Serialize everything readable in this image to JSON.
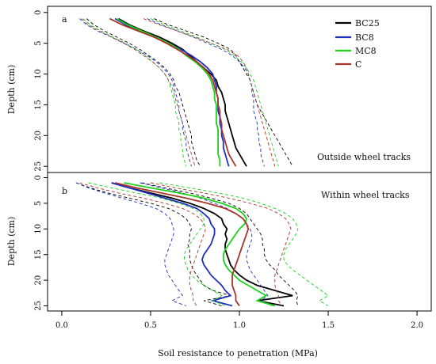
{
  "chart_data": {
    "type": "line",
    "xlabel": "Soil resistance to penetration (MPa)",
    "x_ticks": [
      "0.0",
      "0.5",
      "1.0",
      "1.5",
      "2.0"
    ],
    "x_tick_values": [
      0,
      0.5,
      1.0,
      1.5,
      2.0
    ],
    "xlim": [
      -0.08,
      2.08
    ],
    "legend": {
      "placement": "top-right",
      "entries": [
        {
          "label": "BC25",
          "color": "#000000"
        },
        {
          "label": "BC8",
          "color": "#1f2fbf"
        },
        {
          "label": "MC8",
          "color": "#19d219"
        },
        {
          "label": "C",
          "color": "#a8342a"
        }
      ]
    },
    "panels": [
      {
        "id": "a",
        "letter": "a",
        "annotation": "Outside wheel tracks",
        "ylabel": "Depth (cm)",
        "y_ticks": [
          "0",
          "5",
          "10",
          "15",
          "20",
          "25"
        ],
        "y_tick_values": [
          0,
          5,
          10,
          15,
          20,
          25
        ],
        "ylim": [
          26,
          -1
        ],
        "depths": [
          1,
          2,
          3,
          4,
          5,
          6,
          7,
          8,
          9,
          10,
          11,
          12,
          13,
          14,
          15,
          16,
          17,
          18,
          19,
          20,
          21,
          22,
          23,
          24,
          25
        ],
        "series": [
          {
            "name": "BC25",
            "color": "#000000",
            "mean": [
              0.32,
              0.38,
              0.46,
              0.55,
              0.62,
              0.68,
              0.72,
              0.76,
              0.8,
              0.84,
              0.87,
              0.88,
              0.9,
              0.91,
              0.92,
              0.92,
              0.93,
              0.94,
              0.95,
              0.96,
              0.97,
              0.98,
              1.0,
              1.02,
              1.04
            ],
            "lower": [
              0.14,
              0.18,
              0.24,
              0.31,
              0.38,
              0.44,
              0.49,
              0.54,
              0.58,
              0.61,
              0.63,
              0.64,
              0.66,
              0.67,
              0.68,
              0.69,
              0.7,
              0.71,
              0.72,
              0.73,
              0.73,
              0.74,
              0.75,
              0.76,
              0.78
            ],
            "upper": [
              0.52,
              0.6,
              0.7,
              0.8,
              0.88,
              0.95,
              0.98,
              1.0,
              1.02,
              1.04,
              1.06,
              1.07,
              1.08,
              1.09,
              1.1,
              1.12,
              1.14,
              1.16,
              1.18,
              1.2,
              1.22,
              1.24,
              1.26,
              1.28,
              1.3
            ]
          },
          {
            "name": "BC8",
            "color": "#1f2fbf",
            "mean": [
              0.3,
              0.36,
              0.44,
              0.52,
              0.6,
              0.67,
              0.73,
              0.78,
              0.82,
              0.85,
              0.86,
              0.87,
              0.87,
              0.88,
              0.88,
              0.88,
              0.89,
              0.89,
              0.9,
              0.9,
              0.91,
              0.91,
              0.92,
              0.93,
              0.94
            ],
            "lower": [
              0.1,
              0.14,
              0.2,
              0.28,
              0.35,
              0.42,
              0.48,
              0.53,
              0.57,
              0.6,
              0.62,
              0.63,
              0.64,
              0.65,
              0.66,
              0.66,
              0.67,
              0.68,
              0.68,
              0.69,
              0.7,
              0.7,
              0.71,
              0.72,
              0.73
            ],
            "upper": [
              0.48,
              0.56,
              0.65,
              0.74,
              0.82,
              0.9,
              0.96,
              1.0,
              1.03,
              1.05,
              1.06,
              1.07,
              1.07,
              1.08,
              1.08,
              1.08,
              1.09,
              1.1,
              1.1,
              1.11,
              1.11,
              1.12,
              1.12,
              1.13,
              1.14
            ]
          },
          {
            "name": "MC8",
            "color": "#19d219",
            "mean": [
              0.31,
              0.37,
              0.45,
              0.53,
              0.6,
              0.66,
              0.7,
              0.75,
              0.79,
              0.82,
              0.84,
              0.85,
              0.86,
              0.86,
              0.87,
              0.87,
              0.87,
              0.87,
              0.88,
              0.88,
              0.88,
              0.88,
              0.88,
              0.89,
              0.89
            ],
            "lower": [
              0.12,
              0.16,
              0.22,
              0.29,
              0.36,
              0.42,
              0.47,
              0.51,
              0.55,
              0.58,
              0.6,
              0.61,
              0.62,
              0.63,
              0.64,
              0.64,
              0.65,
              0.66,
              0.66,
              0.67,
              0.67,
              0.68,
              0.68,
              0.69,
              0.7
            ],
            "upper": [
              0.5,
              0.58,
              0.67,
              0.76,
              0.84,
              0.92,
              0.97,
              1.01,
              1.04,
              1.06,
              1.08,
              1.09,
              1.1,
              1.11,
              1.12,
              1.13,
              1.14,
              1.15,
              1.16,
              1.17,
              1.18,
              1.19,
              1.2,
              1.21,
              1.22
            ]
          },
          {
            "name": "C",
            "color": "#a8342a",
            "mean": [
              0.27,
              0.34,
              0.43,
              0.52,
              0.59,
              0.65,
              0.71,
              0.76,
              0.8,
              0.83,
              0.85,
              0.86,
              0.87,
              0.88,
              0.88,
              0.89,
              0.89,
              0.9,
              0.9,
              0.91,
              0.92,
              0.93,
              0.94,
              0.96,
              0.98
            ],
            "lower": [
              0.11,
              0.15,
              0.21,
              0.28,
              0.35,
              0.41,
              0.46,
              0.51,
              0.55,
              0.58,
              0.6,
              0.62,
              0.63,
              0.64,
              0.65,
              0.66,
              0.67,
              0.68,
              0.69,
              0.7,
              0.71,
              0.72,
              0.73,
              0.74,
              0.75
            ],
            "upper": [
              0.46,
              0.55,
              0.65,
              0.75,
              0.84,
              0.93,
              0.99,
              1.02,
              1.04,
              1.05,
              1.06,
              1.07,
              1.08,
              1.09,
              1.1,
              1.11,
              1.12,
              1.13,
              1.14,
              1.15,
              1.16,
              1.17,
              1.18,
              1.19,
              1.2
            ]
          }
        ]
      },
      {
        "id": "b",
        "letter": "b",
        "annotation": "Within wheel tracks",
        "ylabel": "Depth (cm)",
        "y_ticks": [
          "0",
          "5",
          "10",
          "15",
          "20",
          "25"
        ],
        "y_tick_values": [
          0,
          5,
          10,
          15,
          20,
          25
        ],
        "ylim": [
          26,
          -1
        ],
        "depths": [
          1,
          2,
          3,
          4,
          5,
          6,
          7,
          8,
          9,
          10,
          11,
          12,
          13,
          14,
          15,
          16,
          17,
          18,
          19,
          20,
          21,
          22,
          23,
          24,
          25
        ],
        "series": [
          {
            "name": "BC25",
            "color": "#000000",
            "mean": [
              0.28,
              0.38,
              0.5,
              0.62,
              0.72,
              0.8,
              0.86,
              0.9,
              0.91,
              0.93,
              0.92,
              0.93,
              0.92,
              0.92,
              0.93,
              0.94,
              0.95,
              0.97,
              1.0,
              1.04,
              1.1,
              1.2,
              1.3,
              1.1,
              1.25
            ],
            "lower": [
              0.08,
              0.16,
              0.26,
              0.38,
              0.5,
              0.6,
              0.66,
              0.7,
              0.72,
              0.73,
              0.72,
              0.72,
              0.71,
              0.72,
              0.72,
              0.72,
              0.73,
              0.74,
              0.76,
              0.78,
              0.8,
              0.85,
              0.95,
              0.8,
              0.9
            ],
            "upper": [
              0.45,
              0.58,
              0.72,
              0.84,
              0.94,
              1.0,
              1.04,
              1.06,
              1.08,
              1.1,
              1.12,
              1.13,
              1.13,
              1.14,
              1.14,
              1.15,
              1.17,
              1.2,
              1.22,
              1.25,
              1.28,
              1.31,
              1.33,
              1.32,
              1.33
            ]
          },
          {
            "name": "BC8",
            "color": "#1f2fbf",
            "mean": [
              0.28,
              0.38,
              0.48,
              0.58,
              0.68,
              0.76,
              0.8,
              0.83,
              0.84,
              0.86,
              0.86,
              0.85,
              0.84,
              0.82,
              0.8,
              0.79,
              0.8,
              0.82,
              0.84,
              0.87,
              0.9,
              0.92,
              0.95,
              0.85,
              0.96
            ],
            "lower": [
              0.08,
              0.15,
              0.24,
              0.34,
              0.44,
              0.53,
              0.58,
              0.61,
              0.62,
              0.63,
              0.63,
              0.62,
              0.61,
              0.6,
              0.59,
              0.58,
              0.58,
              0.59,
              0.6,
              0.62,
              0.64,
              0.66,
              0.68,
              0.62,
              0.7
            ],
            "upper": [
              0.44,
              0.56,
              0.68,
              0.78,
              0.86,
              0.93,
              0.98,
              1.02,
              1.04,
              1.06,
              1.07,
              1.07,
              1.06,
              1.05,
              1.04,
              1.04,
              1.05,
              1.06,
              1.08,
              1.1,
              1.12,
              1.14,
              1.16,
              1.12,
              1.18
            ]
          },
          {
            "name": "MC8",
            "color": "#19d219",
            "mean": [
              0.35,
              0.5,
              0.66,
              0.8,
              0.9,
              0.98,
              1.02,
              1.04,
              1.03,
              1.0,
              0.98,
              0.96,
              0.94,
              0.92,
              0.91,
              0.91,
              0.92,
              0.94,
              0.97,
              1.0,
              1.05,
              1.1,
              1.15,
              1.1,
              1.2
            ],
            "lower": [
              0.15,
              0.28,
              0.42,
              0.56,
              0.66,
              0.74,
              0.78,
              0.8,
              0.8,
              0.78,
              0.76,
              0.74,
              0.72,
              0.7,
              0.69,
              0.69,
              0.7,
              0.71,
              0.73,
              0.76,
              0.8,
              0.85,
              0.9,
              0.85,
              0.92
            ],
            "upper": [
              0.55,
              0.72,
              0.88,
              1.02,
              1.12,
              1.2,
              1.26,
              1.3,
              1.32,
              1.33,
              1.32,
              1.3,
              1.28,
              1.26,
              1.25,
              1.25,
              1.27,
              1.3,
              1.34,
              1.38,
              1.42,
              1.46,
              1.5,
              1.45,
              1.5
            ]
          },
          {
            "name": "C",
            "color": "#a8342a",
            "mean": [
              0.3,
              0.42,
              0.56,
              0.7,
              0.82,
              0.92,
              0.98,
              1.02,
              1.04,
              1.05,
              1.04,
              1.03,
              1.02,
              1.01,
              1.0,
              0.99,
              0.98,
              0.97,
              0.96,
              0.96,
              0.96,
              0.97,
              0.98,
              0.98,
              1.0
            ],
            "lower": [
              0.1,
              0.2,
              0.32,
              0.46,
              0.58,
              0.68,
              0.74,
              0.78,
              0.8,
              0.81,
              0.8,
              0.79,
              0.78,
              0.77,
              0.76,
              0.75,
              0.74,
              0.73,
              0.72,
              0.72,
              0.72,
              0.73,
              0.74,
              0.74,
              0.76
            ],
            "upper": [
              0.5,
              0.64,
              0.8,
              0.94,
              1.06,
              1.16,
              1.22,
              1.26,
              1.28,
              1.29,
              1.28,
              1.27,
              1.26,
              1.25,
              1.24,
              1.23,
              1.22,
              1.21,
              1.2,
              1.2,
              1.2,
              1.21,
              1.22,
              1.22,
              1.24
            ]
          }
        ]
      }
    ]
  }
}
